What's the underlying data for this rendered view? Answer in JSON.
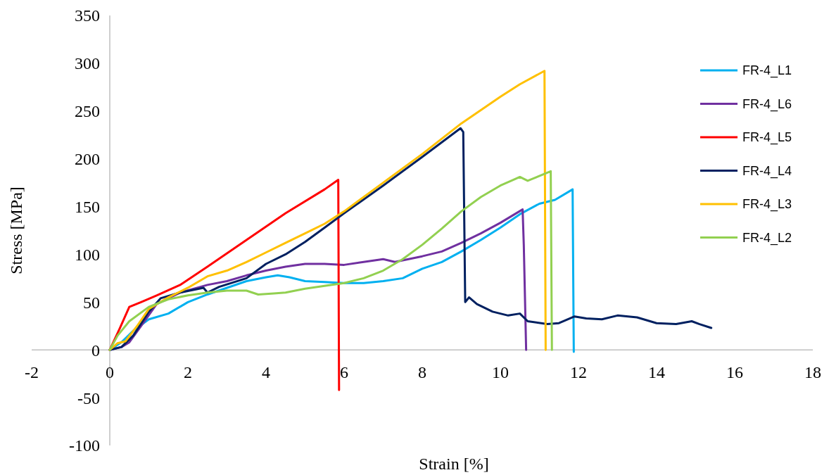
{
  "chart_data": {
    "type": "line",
    "xlabel": "Strain [%]",
    "ylabel": "Stress [MPa]",
    "xlim": [
      -2,
      18
    ],
    "ylim": [
      -100,
      350
    ],
    "xticks": [
      -2,
      0,
      2,
      4,
      6,
      8,
      10,
      12,
      14,
      16,
      18
    ],
    "yticks": [
      -100,
      -50,
      0,
      50,
      100,
      150,
      200,
      250,
      300,
      350
    ],
    "grid": false,
    "legend": "right",
    "marker": "none",
    "line_style": "solid",
    "series": [
      {
        "name": "FR-4_L1",
        "color": "#00b0f0",
        "x": [
          0,
          0.3,
          0.6,
          1,
          1.5,
          2,
          2.5,
          3,
          3.5,
          4,
          4.3,
          4.6,
          5,
          5.5,
          6,
          6.5,
          7,
          7.5,
          8,
          8.5,
          9,
          9.5,
          10,
          10.5,
          11,
          11.4,
          11.85,
          11.88
        ],
        "values": [
          0,
          8,
          20,
          32,
          38,
          50,
          58,
          65,
          72,
          76,
          78,
          76,
          72,
          71,
          70,
          70,
          72,
          75,
          85,
          92,
          103,
          115,
          128,
          142,
          153,
          157,
          168,
          -2
        ]
      },
      {
        "name": "FR-4_L6",
        "color": "#7030a0",
        "x": [
          0,
          0.3,
          0.5,
          0.8,
          1.2,
          1.8,
          2.5,
          3,
          3.5,
          4,
          4.5,
          5,
          5.5,
          6,
          6.5,
          7,
          7.3,
          8,
          8.5,
          9,
          9.5,
          10,
          10.57,
          10.6,
          10.66
        ],
        "values": [
          0,
          3,
          8,
          25,
          48,
          60,
          68,
          72,
          78,
          83,
          87,
          90,
          90,
          89,
          92,
          95,
          92,
          98,
          103,
          112,
          122,
          133,
          147,
          110,
          0
        ]
      },
      {
        "name": "FR-4_L5",
        "color": "#ff0000",
        "x": [
          0,
          0.25,
          0.5,
          0.8,
          1.2,
          1.8,
          2.5,
          3.5,
          4.5,
          5.5,
          5.85,
          5.87
        ],
        "values": [
          0,
          22,
          45,
          50,
          57,
          68,
          87,
          115,
          143,
          168,
          178,
          -42
        ]
      },
      {
        "name": "FR-4_L4",
        "color": "#002060",
        "x": [
          0,
          0.3,
          0.6,
          1,
          1.3,
          1.8,
          2.4,
          2.5,
          2.8,
          3.5,
          4,
          4.5,
          5,
          5.5,
          6,
          7,
          8,
          8.98,
          9.05,
          9.1,
          9.2,
          9.4,
          9.8,
          10.2,
          10.5,
          10.7,
          11.2,
          11.5,
          11.9,
          12.2,
          12.6,
          13,
          13.5,
          14,
          14.5,
          14.9,
          15.1,
          15.4
        ],
        "values": [
          0,
          3,
          15,
          40,
          54,
          60,
          65,
          60,
          66,
          75,
          90,
          100,
          113,
          128,
          143,
          172,
          202,
          232,
          228,
          50,
          55,
          48,
          40,
          36,
          38,
          30,
          27,
          28,
          35,
          33,
          32,
          36,
          34,
          28,
          27,
          30,
          27,
          23
        ]
      },
      {
        "name": "FR-4_L3",
        "color": "#ffc000",
        "x": [
          0,
          0.2,
          0.4,
          0.7,
          1,
          1.5,
          2,
          2.5,
          3,
          3.5,
          4,
          4.5,
          5,
          5.5,
          6,
          7,
          8,
          9,
          10,
          10.5,
          11.13,
          11.16
        ],
        "values": [
          0,
          7,
          9,
          25,
          43,
          55,
          65,
          77,
          83,
          92,
          102,
          112,
          122,
          132,
          145,
          175,
          205,
          237,
          265,
          278,
          292,
          0
        ]
      },
      {
        "name": "FR-4_L2",
        "color": "#92d050",
        "x": [
          0,
          0.2,
          0.5,
          1,
          1.5,
          2,
          2.5,
          3,
          3.5,
          3.8,
          4.2,
          4.5,
          5,
          5.5,
          6,
          6.5,
          7,
          7.5,
          8,
          8.5,
          9,
          9.5,
          10,
          10.5,
          10.7,
          11.29,
          11.32
        ],
        "values": [
          0,
          15,
          30,
          45,
          53,
          57,
          60,
          62,
          62,
          58,
          59,
          60,
          64,
          67,
          70,
          75,
          83,
          95,
          110,
          127,
          145,
          160,
          172,
          181,
          177,
          187,
          0
        ]
      }
    ]
  }
}
